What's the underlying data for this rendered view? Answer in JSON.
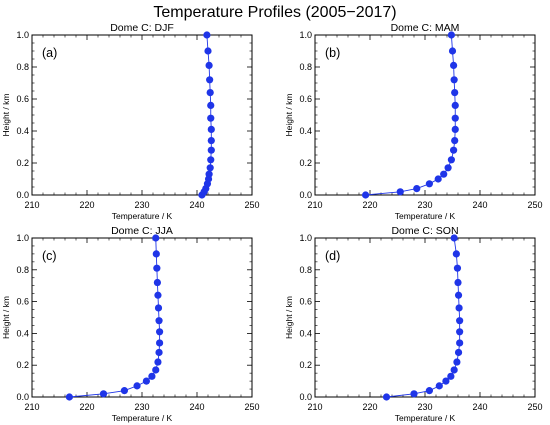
{
  "figure_title": "Temperature Profiles (2005−2017)",
  "chart_data": [
    {
      "type": "line",
      "panel_label": "(a)",
      "title": "Dome C: DJF",
      "xlabel": "Temperature / K",
      "ylabel": "Height / km",
      "xlim": [
        210,
        250
      ],
      "ylim": [
        0.0,
        1.0
      ],
      "xticks": [
        "210",
        "220",
        "230",
        "240",
        "250"
      ],
      "yticks": [
        "0.0",
        "0.2",
        "0.4",
        "0.6",
        "0.8",
        "1.0"
      ],
      "marker": "filled-circle",
      "color": "#1f35e8",
      "points": [
        {
          "x": 240.9,
          "y": 0.0
        },
        {
          "x": 241.3,
          "y": 0.02
        },
        {
          "x": 241.6,
          "y": 0.04
        },
        {
          "x": 241.9,
          "y": 0.07
        },
        {
          "x": 242.1,
          "y": 0.1
        },
        {
          "x": 242.2,
          "y": 0.13
        },
        {
          "x": 242.4,
          "y": 0.17
        },
        {
          "x": 242.5,
          "y": 0.22
        },
        {
          "x": 242.6,
          "y": 0.28
        },
        {
          "x": 242.6,
          "y": 0.34
        },
        {
          "x": 242.6,
          "y": 0.41
        },
        {
          "x": 242.5,
          "y": 0.48
        },
        {
          "x": 242.5,
          "y": 0.56
        },
        {
          "x": 242.4,
          "y": 0.64
        },
        {
          "x": 242.3,
          "y": 0.72
        },
        {
          "x": 242.2,
          "y": 0.81
        },
        {
          "x": 242.0,
          "y": 0.9
        },
        {
          "x": 241.8,
          "y": 1.0
        }
      ]
    },
    {
      "type": "line",
      "panel_label": "(b)",
      "title": "Dome C: MAM",
      "xlabel": "Temperature / K",
      "ylabel": "Height / km",
      "xlim": [
        210,
        250
      ],
      "ylim": [
        0.0,
        1.0
      ],
      "xticks": [
        "210",
        "220",
        "230",
        "240",
        "250"
      ],
      "yticks": [
        "0.0",
        "0.2",
        "0.4",
        "0.6",
        "0.8",
        "1.0"
      ],
      "marker": "filled-circle",
      "color": "#1f35e8",
      "points": [
        {
          "x": 219.2,
          "y": 0.0
        },
        {
          "x": 225.5,
          "y": 0.02
        },
        {
          "x": 228.5,
          "y": 0.04
        },
        {
          "x": 230.8,
          "y": 0.07
        },
        {
          "x": 232.4,
          "y": 0.1
        },
        {
          "x": 233.4,
          "y": 0.13
        },
        {
          "x": 234.2,
          "y": 0.17
        },
        {
          "x": 234.8,
          "y": 0.22
        },
        {
          "x": 235.2,
          "y": 0.28
        },
        {
          "x": 235.4,
          "y": 0.34
        },
        {
          "x": 235.5,
          "y": 0.41
        },
        {
          "x": 235.5,
          "y": 0.48
        },
        {
          "x": 235.5,
          "y": 0.56
        },
        {
          "x": 235.4,
          "y": 0.64
        },
        {
          "x": 235.3,
          "y": 0.72
        },
        {
          "x": 235.2,
          "y": 0.81
        },
        {
          "x": 235.0,
          "y": 0.9
        },
        {
          "x": 234.8,
          "y": 1.0
        }
      ]
    },
    {
      "type": "line",
      "panel_label": "(c)",
      "title": "Dome C: JJA",
      "xlabel": "Temperature / K",
      "ylabel": "Height / km",
      "xlim": [
        210,
        250
      ],
      "ylim": [
        0.0,
        1.0
      ],
      "xticks": [
        "210",
        "220",
        "230",
        "240",
        "250"
      ],
      "yticks": [
        "0.0",
        "0.2",
        "0.4",
        "0.6",
        "0.8",
        "1.0"
      ],
      "marker": "filled-circle",
      "color": "#1f35e8",
      "points": [
        {
          "x": 216.8,
          "y": 0.0
        },
        {
          "x": 223.0,
          "y": 0.02
        },
        {
          "x": 226.8,
          "y": 0.04
        },
        {
          "x": 229.1,
          "y": 0.07
        },
        {
          "x": 230.8,
          "y": 0.1
        },
        {
          "x": 231.8,
          "y": 0.13
        },
        {
          "x": 232.5,
          "y": 0.17
        },
        {
          "x": 232.9,
          "y": 0.22
        },
        {
          "x": 233.1,
          "y": 0.28
        },
        {
          "x": 233.2,
          "y": 0.34
        },
        {
          "x": 233.2,
          "y": 0.41
        },
        {
          "x": 233.1,
          "y": 0.48
        },
        {
          "x": 233.0,
          "y": 0.56
        },
        {
          "x": 232.9,
          "y": 0.64
        },
        {
          "x": 232.8,
          "y": 0.72
        },
        {
          "x": 232.7,
          "y": 0.81
        },
        {
          "x": 232.6,
          "y": 0.9
        },
        {
          "x": 232.5,
          "y": 1.0
        }
      ]
    },
    {
      "type": "line",
      "panel_label": "(d)",
      "title": "Dome C: SON",
      "xlabel": "Temperature / K",
      "ylabel": "Height / km",
      "xlim": [
        210,
        250
      ],
      "ylim": [
        0.0,
        1.0
      ],
      "xticks": [
        "210",
        "220",
        "230",
        "240",
        "250"
      ],
      "yticks": [
        "0.0",
        "0.2",
        "0.4",
        "0.6",
        "0.8",
        "1.0"
      ],
      "marker": "filled-circle",
      "color": "#1f35e8",
      "points": [
        {
          "x": 223.0,
          "y": 0.0
        },
        {
          "x": 228.0,
          "y": 0.02
        },
        {
          "x": 230.8,
          "y": 0.04
        },
        {
          "x": 232.6,
          "y": 0.07
        },
        {
          "x": 233.8,
          "y": 0.1
        },
        {
          "x": 234.7,
          "y": 0.13
        },
        {
          "x": 235.3,
          "y": 0.17
        },
        {
          "x": 235.8,
          "y": 0.22
        },
        {
          "x": 236.1,
          "y": 0.28
        },
        {
          "x": 236.3,
          "y": 0.34
        },
        {
          "x": 236.3,
          "y": 0.41
        },
        {
          "x": 236.3,
          "y": 0.48
        },
        {
          "x": 236.2,
          "y": 0.56
        },
        {
          "x": 236.1,
          "y": 0.64
        },
        {
          "x": 236.0,
          "y": 0.72
        },
        {
          "x": 235.9,
          "y": 0.81
        },
        {
          "x": 235.7,
          "y": 0.9
        },
        {
          "x": 235.3,
          "y": 1.0
        }
      ]
    }
  ]
}
